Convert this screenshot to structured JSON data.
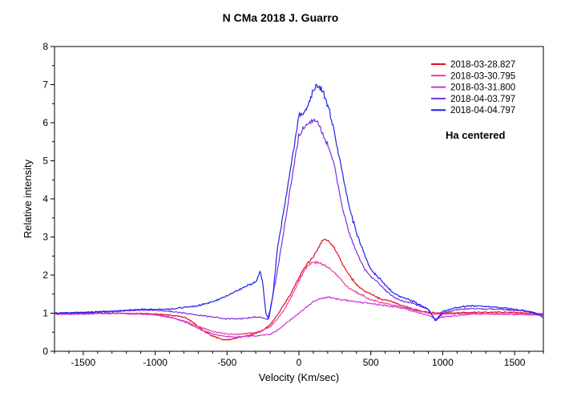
{
  "chart_data": {
    "type": "line",
    "title": "N CMa 2018   J. Guarro",
    "xlabel": "Velocity (Km/sec)",
    "ylabel": "Relative intensity",
    "xlim": [
      -1700,
      1700
    ],
    "ylim": [
      0,
      8
    ],
    "xticks": [
      -1500,
      -1000,
      -500,
      0,
      500,
      1000,
      1500
    ],
    "xtick_labels": [
      "-1500",
      "-1000",
      "-500",
      "0",
      "500",
      "1000",
      "1500"
    ],
    "yticks": [
      0,
      1,
      2,
      3,
      4,
      5,
      6,
      7,
      8
    ],
    "ytick_labels": [
      "0",
      "1",
      "2",
      "3",
      "4",
      "5",
      "6",
      "7",
      "8"
    ],
    "grid": false,
    "legend_position": "top-right",
    "annotation": "Ha centered",
    "series": [
      {
        "name": "2018-03-28.827",
        "color": "#e0101a",
        "points": [
          [
            -1700,
            1.0
          ],
          [
            -1500,
            1.0
          ],
          [
            -1300,
            1.0
          ],
          [
            -1100,
            0.99
          ],
          [
            -1000,
            0.98
          ],
          [
            -900,
            0.95
          ],
          [
            -800,
            0.9
          ],
          [
            -750,
            0.8
          ],
          [
            -700,
            0.65
          ],
          [
            -650,
            0.5
          ],
          [
            -600,
            0.4
          ],
          [
            -550,
            0.33
          ],
          [
            -500,
            0.3
          ],
          [
            -450,
            0.33
          ],
          [
            -400,
            0.38
          ],
          [
            -350,
            0.42
          ],
          [
            -300,
            0.47
          ],
          [
            -250,
            0.55
          ],
          [
            -200,
            0.7
          ],
          [
            -150,
            0.95
          ],
          [
            -100,
            1.25
          ],
          [
            -50,
            1.55
          ],
          [
            0,
            1.95
          ],
          [
            50,
            2.25
          ],
          [
            100,
            2.5
          ],
          [
            150,
            2.8
          ],
          [
            170,
            2.95
          ],
          [
            200,
            2.9
          ],
          [
            250,
            2.7
          ],
          [
            300,
            2.3
          ],
          [
            350,
            2.0
          ],
          [
            400,
            1.75
          ],
          [
            450,
            1.6
          ],
          [
            500,
            1.5
          ],
          [
            550,
            1.4
          ],
          [
            600,
            1.35
          ],
          [
            650,
            1.3
          ],
          [
            700,
            1.22
          ],
          [
            800,
            1.1
          ],
          [
            900,
            1.02
          ],
          [
            1000,
            1.0
          ],
          [
            1200,
            1.02
          ],
          [
            1400,
            1.03
          ],
          [
            1600,
            1.0
          ],
          [
            1700,
            0.97
          ]
        ]
      },
      {
        "name": "2018-03-30.795",
        "color": "#ee3f9f",
        "points": [
          [
            -1700,
            0.97
          ],
          [
            -1500,
            0.98
          ],
          [
            -1300,
            1.0
          ],
          [
            -1100,
            0.98
          ],
          [
            -1000,
            0.96
          ],
          [
            -900,
            0.9
          ],
          [
            -800,
            0.8
          ],
          [
            -700,
            0.65
          ],
          [
            -600,
            0.52
          ],
          [
            -500,
            0.45
          ],
          [
            -400,
            0.45
          ],
          [
            -300,
            0.5
          ],
          [
            -250,
            0.55
          ],
          [
            -200,
            0.65
          ],
          [
            -150,
            0.85
          ],
          [
            -100,
            1.1
          ],
          [
            -50,
            1.45
          ],
          [
            0,
            1.85
          ],
          [
            50,
            2.2
          ],
          [
            100,
            2.35
          ],
          [
            150,
            2.3
          ],
          [
            200,
            2.2
          ],
          [
            250,
            2.05
          ],
          [
            300,
            1.85
          ],
          [
            350,
            1.65
          ],
          [
            400,
            1.55
          ],
          [
            450,
            1.45
          ],
          [
            500,
            1.35
          ],
          [
            600,
            1.25
          ],
          [
            700,
            1.18
          ],
          [
            800,
            1.08
          ],
          [
            900,
            1.0
          ],
          [
            1000,
            0.97
          ],
          [
            1100,
            0.99
          ],
          [
            1300,
            0.98
          ],
          [
            1500,
            0.97
          ],
          [
            1700,
            0.95
          ]
        ]
      },
      {
        "name": "2018-03-31.800",
        "color": "#cc33dd",
        "points": [
          [
            -1700,
            0.97
          ],
          [
            -1500,
            0.98
          ],
          [
            -1300,
            1.0
          ],
          [
            -1100,
            0.98
          ],
          [
            -1000,
            0.96
          ],
          [
            -900,
            0.9
          ],
          [
            -800,
            0.78
          ],
          [
            -700,
            0.6
          ],
          [
            -600,
            0.45
          ],
          [
            -500,
            0.38
          ],
          [
            -400,
            0.38
          ],
          [
            -300,
            0.4
          ],
          [
            -200,
            0.45
          ],
          [
            -150,
            0.55
          ],
          [
            -100,
            0.7
          ],
          [
            -50,
            0.85
          ],
          [
            0,
            1.0
          ],
          [
            50,
            1.15
          ],
          [
            100,
            1.3
          ],
          [
            150,
            1.38
          ],
          [
            200,
            1.42
          ],
          [
            250,
            1.38
          ],
          [
            300,
            1.35
          ],
          [
            400,
            1.3
          ],
          [
            500,
            1.25
          ],
          [
            600,
            1.2
          ],
          [
            700,
            1.15
          ],
          [
            800,
            1.05
          ],
          [
            900,
            0.95
          ],
          [
            950,
            0.85
          ],
          [
            1000,
            0.9
          ],
          [
            1100,
            0.93
          ],
          [
            1200,
            0.98
          ],
          [
            1400,
            0.98
          ],
          [
            1600,
            0.97
          ],
          [
            1700,
            0.95
          ]
        ]
      },
      {
        "name": "2018-04-03.797",
        "color": "#7a2fe0",
        "points": [
          [
            -1700,
            1.0
          ],
          [
            -1500,
            1.02
          ],
          [
            -1300,
            1.05
          ],
          [
            -1100,
            1.08
          ],
          [
            -1000,
            1.08
          ],
          [
            -900,
            1.05
          ],
          [
            -800,
            1.0
          ],
          [
            -700,
            0.95
          ],
          [
            -600,
            0.9
          ],
          [
            -500,
            0.85
          ],
          [
            -450,
            0.85
          ],
          [
            -400,
            0.85
          ],
          [
            -350,
            0.88
          ],
          [
            -300,
            0.9
          ],
          [
            -250,
            0.88
          ],
          [
            -220,
            0.82
          ],
          [
            -200,
            1.1
          ],
          [
            -150,
            2.1
          ],
          [
            -100,
            3.3
          ],
          [
            -50,
            4.5
          ],
          [
            0,
            5.7
          ],
          [
            50,
            5.95
          ],
          [
            100,
            6.1
          ],
          [
            130,
            6.05
          ],
          [
            150,
            5.8
          ],
          [
            200,
            5.4
          ],
          [
            250,
            4.8
          ],
          [
            300,
            3.8
          ],
          [
            350,
            3.1
          ],
          [
            400,
            2.6
          ],
          [
            450,
            2.2
          ],
          [
            500,
            1.95
          ],
          [
            550,
            1.8
          ],
          [
            600,
            1.6
          ],
          [
            650,
            1.45
          ],
          [
            700,
            1.35
          ],
          [
            800,
            1.25
          ],
          [
            900,
            1.1
          ],
          [
            950,
            0.8
          ],
          [
            1000,
            1.0
          ],
          [
            1100,
            1.1
          ],
          [
            1200,
            1.12
          ],
          [
            1400,
            1.1
          ],
          [
            1600,
            1.05
          ],
          [
            1700,
            0.95
          ]
        ]
      },
      {
        "name": "2018-04-04.797",
        "color": "#1e22e8",
        "points": [
          [
            -1700,
            1.0
          ],
          [
            -1500,
            1.02
          ],
          [
            -1300,
            1.05
          ],
          [
            -1100,
            1.1
          ],
          [
            -1000,
            1.1
          ],
          [
            -900,
            1.1
          ],
          [
            -800,
            1.15
          ],
          [
            -700,
            1.2
          ],
          [
            -600,
            1.3
          ],
          [
            -500,
            1.45
          ],
          [
            -450,
            1.55
          ],
          [
            -400,
            1.65
          ],
          [
            -350,
            1.75
          ],
          [
            -300,
            1.8
          ],
          [
            -270,
            2.1
          ],
          [
            -250,
            1.75
          ],
          [
            -230,
            1.0
          ],
          [
            -210,
            0.85
          ],
          [
            -180,
            1.5
          ],
          [
            -150,
            2.7
          ],
          [
            -100,
            3.8
          ],
          [
            -50,
            5.0
          ],
          [
            0,
            6.2
          ],
          [
            50,
            6.3
          ],
          [
            100,
            6.85
          ],
          [
            120,
            7.0
          ],
          [
            150,
            6.9
          ],
          [
            200,
            6.5
          ],
          [
            250,
            5.7
          ],
          [
            300,
            4.7
          ],
          [
            350,
            3.8
          ],
          [
            400,
            3.1
          ],
          [
            450,
            2.6
          ],
          [
            500,
            2.15
          ],
          [
            550,
            1.95
          ],
          [
            600,
            1.75
          ],
          [
            650,
            1.55
          ],
          [
            700,
            1.45
          ],
          [
            800,
            1.3
          ],
          [
            900,
            1.1
          ],
          [
            950,
            0.8
          ],
          [
            1000,
            1.05
          ],
          [
            1100,
            1.15
          ],
          [
            1200,
            1.2
          ],
          [
            1400,
            1.15
          ],
          [
            1600,
            1.05
          ],
          [
            1700,
            0.9
          ]
        ]
      }
    ]
  }
}
